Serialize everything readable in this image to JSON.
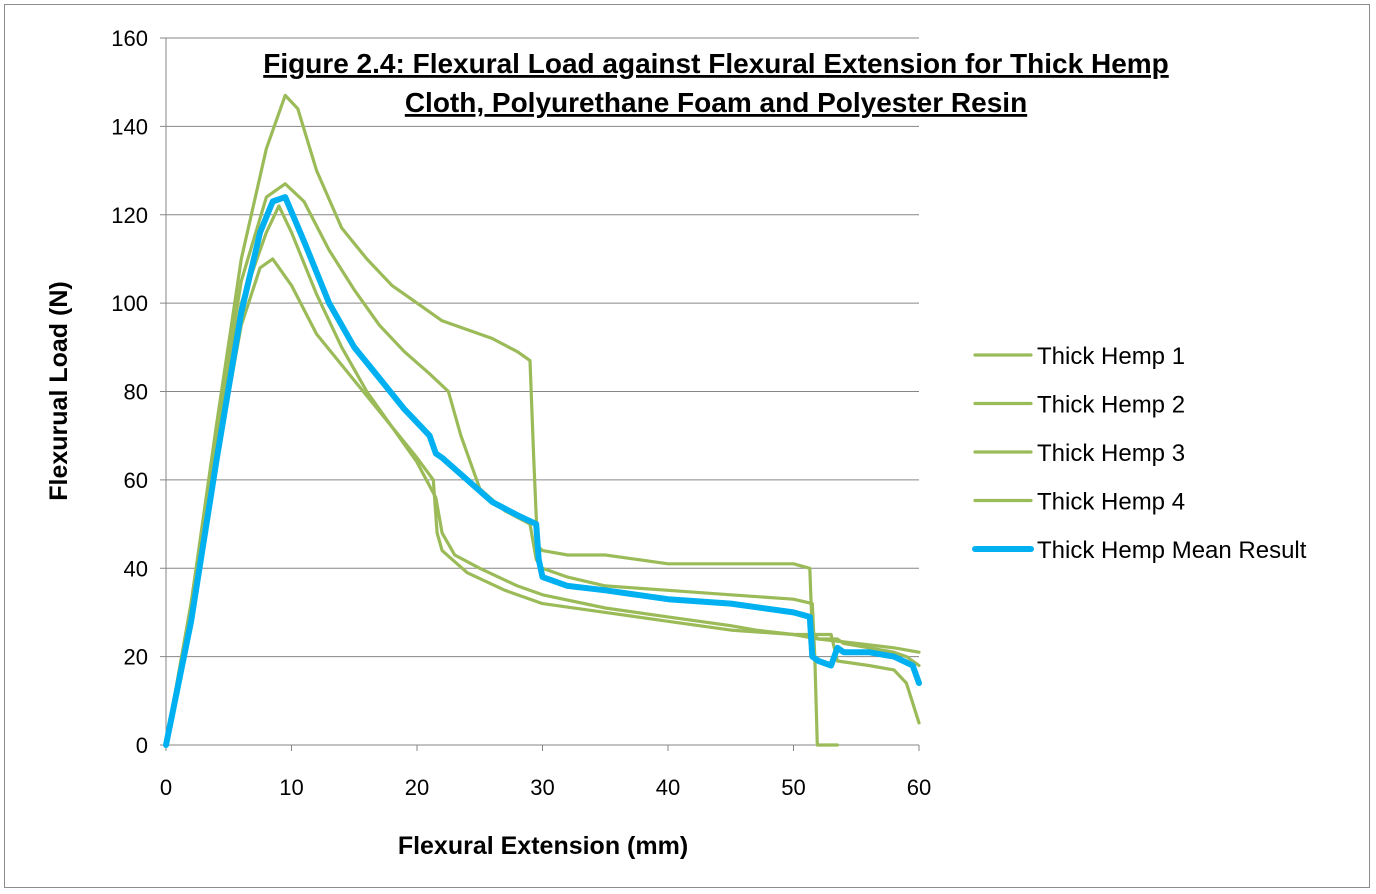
{
  "chart_data": {
    "type": "line",
    "title_lines": [
      "Figure 2.4: Flexural Load against Flexural Extension for Thick Hemp",
      "Cloth, Polyurethane Foam and Polyester Resin"
    ],
    "xlabel": "Flexural Extension (mm)",
    "ylabel": "Flexurual Load (N)",
    "xlim": [
      0,
      60
    ],
    "ylim": [
      0,
      160
    ],
    "xticks": [
      0,
      10,
      20,
      30,
      40,
      50,
      60
    ],
    "yticks": [
      0,
      20,
      40,
      60,
      80,
      100,
      120,
      140,
      160
    ],
    "grid": "horizontal",
    "legend_position": "right",
    "series": [
      {
        "name": "Thick Hemp 1",
        "color": "#9bbb59",
        "x": [
          0,
          2,
          4,
          6,
          8,
          9.5,
          10.5,
          12,
          14,
          16,
          18,
          20,
          22,
          24,
          26,
          28,
          29,
          29.3,
          29.6,
          30,
          32,
          35,
          40,
          45,
          48,
          50,
          51.3,
          51.5,
          52,
          55,
          58,
          60
        ],
        "y": [
          0,
          32,
          72,
          110,
          135,
          147,
          144,
          130,
          117,
          110,
          104,
          100,
          96,
          94,
          92,
          89,
          87,
          65,
          45,
          44,
          43,
          43,
          41,
          41,
          41,
          41,
          40,
          25,
          24,
          23,
          22,
          21
        ]
      },
      {
        "name": "Thick Hemp 2",
        "color": "#9bbb59",
        "x": [
          0,
          2,
          4,
          6,
          8,
          9.5,
          11,
          13,
          15,
          17,
          19,
          21,
          22.5,
          23.5,
          25,
          27,
          29,
          29.5,
          30,
          32,
          35,
          40,
          45,
          50,
          51.5,
          51.7,
          51.9,
          53.5
        ],
        "y": [
          0,
          32,
          70,
          105,
          124,
          127,
          123,
          112,
          103,
          95,
          89,
          84,
          80,
          70,
          58,
          53,
          50,
          42,
          40,
          38,
          36,
          35,
          34,
          33,
          32,
          20,
          0,
          0
        ]
      },
      {
        "name": "Thick Hemp 3",
        "color": "#9bbb59",
        "x": [
          0,
          2,
          4,
          6,
          8,
          9,
          10,
          12,
          14,
          16,
          18,
          20,
          21.5,
          22,
          23,
          25,
          28,
          30,
          35,
          40,
          45,
          47,
          50,
          52,
          53.5,
          54,
          56,
          58,
          59,
          60
        ],
        "y": [
          0,
          32,
          70,
          100,
          116,
          122,
          116,
          102,
          90,
          80,
          72,
          64,
          56,
          48,
          43,
          40,
          36,
          34,
          31,
          29,
          27,
          26,
          25,
          24,
          24,
          23,
          22,
          21,
          20,
          18
        ]
      },
      {
        "name": "Thick Hemp 4",
        "color": "#9bbb59",
        "x": [
          0,
          2,
          4,
          6,
          7.5,
          8.5,
          10,
          12,
          14,
          16,
          18,
          20,
          21.3,
          21.6,
          22,
          24,
          27,
          30,
          35,
          40,
          45,
          50,
          53,
          53.5,
          56,
          58,
          59,
          60
        ],
        "y": [
          0,
          30,
          64,
          95,
          108,
          110,
          104,
          93,
          86,
          79,
          72,
          65,
          60,
          48,
          44,
          39,
          35,
          32,
          30,
          28,
          26,
          25,
          25,
          19,
          18,
          17,
          14,
          5
        ]
      },
      {
        "name": "Thick Hemp Mean Result",
        "color": "#00b0f0",
        "x": [
          0,
          2,
          4,
          6,
          7.5,
          8.5,
          9.5,
          11,
          13,
          15,
          17,
          19,
          21,
          21.5,
          22,
          24,
          26,
          28,
          29.5,
          29.7,
          30,
          32,
          35,
          40,
          45,
          50,
          51.3,
          51.5,
          52,
          53,
          53.5,
          54,
          56,
          58,
          59.5,
          60
        ],
        "y": [
          0,
          28,
          64,
          98,
          116,
          123,
          124,
          114,
          100,
          90,
          83,
          76,
          70,
          66,
          65,
          60,
          55,
          52,
          50,
          42,
          38,
          36,
          35,
          33,
          32,
          30,
          29,
          20,
          19,
          18,
          22,
          21,
          21,
          20,
          18,
          14
        ]
      }
    ]
  }
}
